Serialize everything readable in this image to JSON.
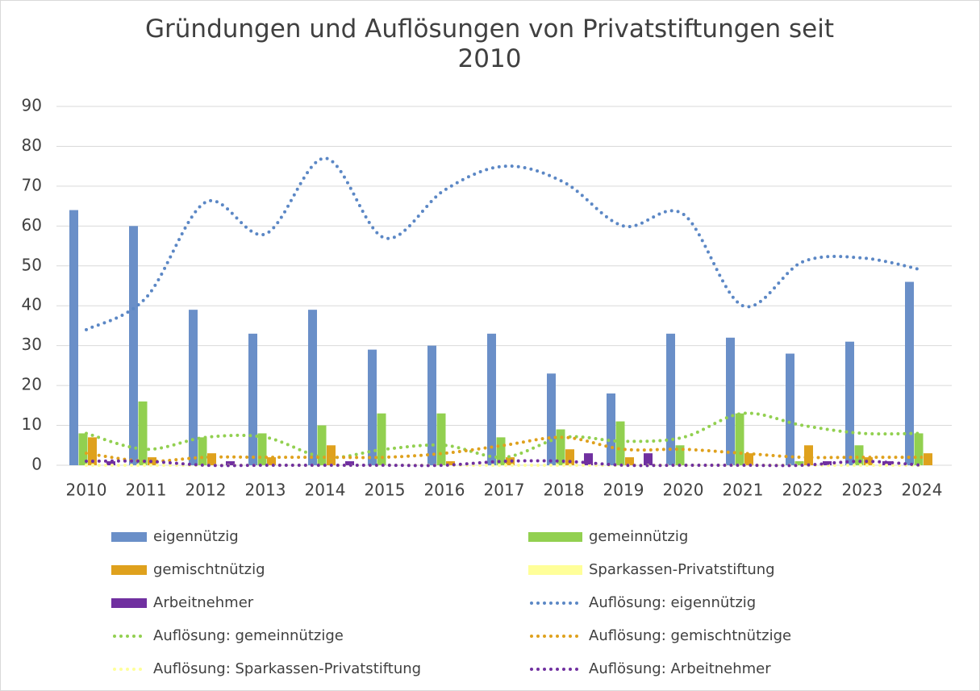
{
  "chart_data": {
    "type": "bar",
    "title": "Gründungen und Auflösungen von Privatstiftungen seit 2010",
    "categories": [
      "2010",
      "2011",
      "2012",
      "2013",
      "2014",
      "2015",
      "2016",
      "2017",
      "2018",
      "2019",
      "2020",
      "2021",
      "2022",
      "2023",
      "2024"
    ],
    "ylim": [
      0,
      90
    ],
    "yticks": [
      0,
      10,
      20,
      30,
      40,
      50,
      60,
      70,
      80,
      90
    ],
    "grid": true,
    "legend": "bottom",
    "series": [
      {
        "name": "eigennützig",
        "color": "#6a8fc8",
        "values": [
          64,
          60,
          39,
          33,
          39,
          29,
          30,
          33,
          23,
          18,
          33,
          32,
          28,
          31,
          46
        ]
      },
      {
        "name": "gemeinnützig",
        "color": "#92d050",
        "values": [
          8,
          16,
          7,
          8,
          10,
          13,
          13,
          7,
          9,
          11,
          5,
          13,
          1,
          5,
          8
        ]
      },
      {
        "name": "gemischtnützig",
        "color": "#dfa11d",
        "values": [
          7,
          2,
          3,
          2,
          5,
          0,
          1,
          2,
          4,
          2,
          0,
          3,
          5,
          2,
          3
        ]
      },
      {
        "name": "Sparkassen-Privatstiftung",
        "color": "#ffff99",
        "values": [
          0,
          0,
          0,
          0,
          0,
          0,
          0,
          0,
          0,
          0,
          0,
          0,
          0,
          0,
          0
        ]
      },
      {
        "name": "Arbeitnehmer",
        "color": "#7030a0",
        "values": [
          1,
          0,
          1,
          0,
          1,
          0,
          0,
          0,
          3,
          3,
          0,
          0,
          1,
          1,
          0
        ]
      },
      {
        "name": "Auflösung: eigennützig",
        "type": "line",
        "dash": "dotted",
        "smooth": true,
        "color": "#5b87c5",
        "values": [
          34,
          42,
          66,
          58,
          77,
          57,
          69,
          75,
          71,
          60,
          63,
          40,
          51,
          52,
          49
        ]
      },
      {
        "name": "Auflösung: gemeinnützige",
        "type": "line",
        "dash": "dotted",
        "smooth": true,
        "color": "#92d050",
        "values": [
          8,
          4,
          7,
          7,
          2,
          4,
          5,
          2,
          7,
          6,
          7,
          13,
          10,
          8,
          8
        ]
      },
      {
        "name": "Auflösung: gemischtnützige",
        "type": "line",
        "dash": "dotted",
        "smooth": true,
        "color": "#dfa11d",
        "values": [
          3,
          1,
          2,
          2,
          2,
          2,
          3,
          5,
          7,
          4,
          4,
          3,
          2,
          2,
          2
        ]
      },
      {
        "name": "Auflösung: Sparkassen-Privatstiftung",
        "type": "line",
        "dash": "dotted",
        "smooth": true,
        "color": "#ffff99",
        "values": [
          0,
          0,
          0,
          0,
          0,
          0,
          0,
          0,
          0,
          0,
          0,
          0,
          0,
          0,
          0
        ]
      },
      {
        "name": "Auflösung: Arbeitnehmer",
        "type": "line",
        "dash": "dotted",
        "smooth": true,
        "color": "#7030a0",
        "values": [
          1,
          1,
          0,
          0,
          0,
          0,
          0,
          1,
          1,
          0,
          0,
          0,
          0,
          1,
          0
        ]
      }
    ]
  }
}
